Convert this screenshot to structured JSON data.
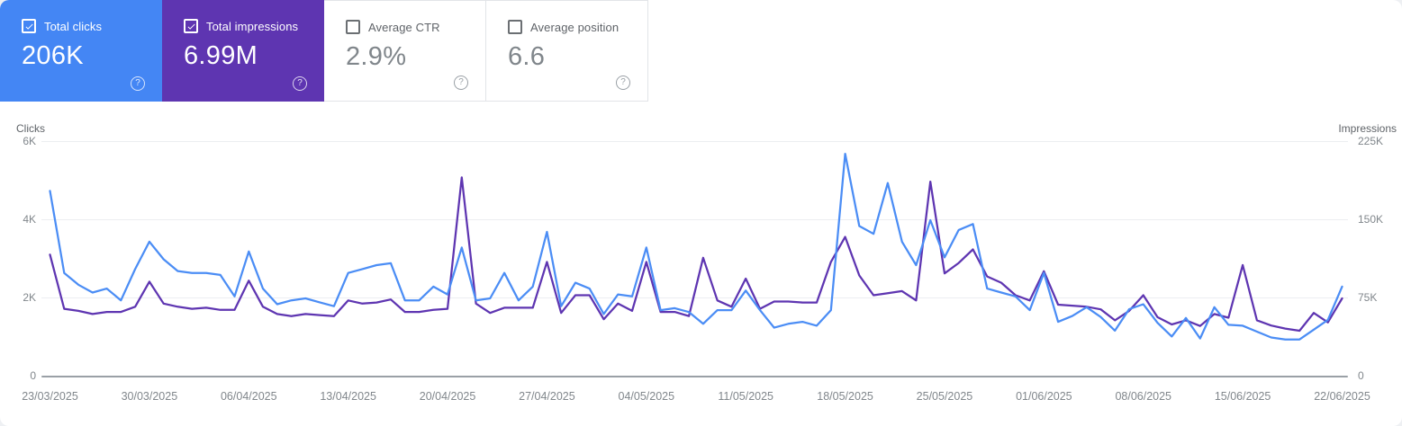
{
  "cards": [
    {
      "label": "Total clicks",
      "value": "206K",
      "checked": true,
      "color": "#4486f4"
    },
    {
      "label": "Total impressions",
      "value": "6.99M",
      "checked": true,
      "color": "#5e35b1"
    },
    {
      "label": "Average CTR",
      "value": "2.9%",
      "checked": false,
      "color": ""
    },
    {
      "label": "Average position",
      "value": "6.6",
      "checked": false,
      "color": ""
    }
  ],
  "help_glyph": "?",
  "chart_data": {
    "type": "line",
    "left_axis": {
      "title": "Clicks",
      "ticks": [
        "6K",
        "4K",
        "2K",
        "0"
      ],
      "range": [
        0,
        6000
      ]
    },
    "right_axis": {
      "title": "Impressions",
      "ticks": [
        "225K",
        "150K",
        "75K",
        "0"
      ],
      "range": [
        0,
        225000
      ]
    },
    "grid": "horizontal-only",
    "x_labels": [
      "23/03/2025",
      "30/03/2025",
      "06/04/2025",
      "13/04/2025",
      "20/04/2025",
      "27/04/2025",
      "04/05/2025",
      "11/05/2025",
      "18/05/2025",
      "25/05/2025",
      "01/06/2025",
      "08/06/2025",
      "15/06/2025",
      "22/06/2025"
    ],
    "x_start": "23/03/2025",
    "x_end": "22/06/2025",
    "points_per_series": 92,
    "series": [
      {
        "name": "Impressions",
        "axis": "right",
        "color": "#5e35b1",
        "values": [
          117000,
          65000,
          63000,
          60000,
          62000,
          62000,
          67000,
          91000,
          70000,
          67000,
          65000,
          66000,
          64000,
          64000,
          92000,
          67000,
          60000,
          58000,
          60000,
          59000,
          58000,
          73000,
          70000,
          71000,
          74000,
          62000,
          62000,
          64000,
          65000,
          191000,
          70000,
          61000,
          66000,
          66000,
          66000,
          110000,
          61000,
          78000,
          78000,
          55000,
          70000,
          63000,
          110000,
          62000,
          62000,
          58000,
          114000,
          73000,
          67000,
          94000,
          65000,
          72000,
          72000,
          71000,
          71000,
          110000,
          134000,
          97000,
          78000,
          80000,
          82000,
          73000,
          187000,
          99000,
          109000,
          122000,
          96000,
          90000,
          78000,
          73000,
          101000,
          69000,
          68000,
          67000,
          64500,
          54000,
          63000,
          78000,
          57000,
          50000,
          54000,
          48500,
          60000,
          56500,
          107000,
          54000,
          49000,
          46000,
          44000,
          61000,
          52000,
          75000
        ]
      },
      {
        "name": "Clicks",
        "axis": "left",
        "color": "#4b8df5",
        "values": [
          4750,
          2650,
          2350,
          2150,
          2250,
          1950,
          2750,
          3450,
          3000,
          2700,
          2650,
          2650,
          2600,
          2050,
          3200,
          2250,
          1850,
          1950,
          2000,
          1900,
          1800,
          2650,
          2750,
          2850,
          2900,
          1950,
          1950,
          2300,
          2100,
          3300,
          1950,
          2000,
          2650,
          1950,
          2300,
          3700,
          1800,
          2400,
          2250,
          1600,
          2100,
          2050,
          3300,
          1700,
          1750,
          1650,
          1350,
          1700,
          1700,
          2200,
          1700,
          1250,
          1350,
          1400,
          1300,
          1700,
          5700,
          3850,
          3650,
          4950,
          3450,
          2850,
          4000,
          3050,
          3750,
          3900,
          2250,
          2150,
          2050,
          1700,
          2650,
          1400,
          1550,
          1775,
          1525,
          1175,
          1725,
          1850,
          1375,
          1025,
          1500,
          975,
          1775,
          1325,
          1300,
          1150,
          1000,
          950,
          950,
          1200,
          1450,
          2300
        ]
      }
    ]
  }
}
